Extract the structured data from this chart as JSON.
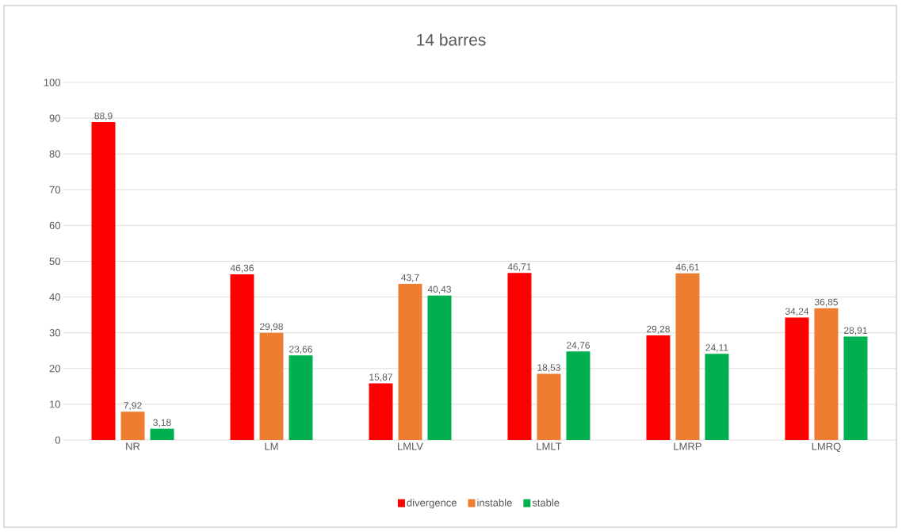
{
  "chart_data": {
    "type": "bar",
    "title": "14 barres",
    "categories": [
      "NR",
      "LM",
      "LMLV",
      "LMLT",
      "LMRP",
      "LMRQ"
    ],
    "series": [
      {
        "name": "divergence",
        "color": "#ff0000",
        "values": [
          88.9,
          46.36,
          15.87,
          46.71,
          29.28,
          34.24
        ],
        "value_labels": [
          "88,9",
          "46,36",
          "15,87",
          "46,71",
          "29,28",
          "34,24"
        ]
      },
      {
        "name": "instable",
        "color": "#ed7d31",
        "values": [
          7.92,
          29.98,
          43.7,
          18.53,
          46.61,
          36.85
        ],
        "value_labels": [
          "7,92",
          "29,98",
          "43,7",
          "18,53",
          "46,61",
          "36,85"
        ]
      },
      {
        "name": "stable",
        "color": "#00b050",
        "values": [
          3.18,
          23.66,
          40.43,
          24.76,
          24.11,
          28.91
        ],
        "value_labels": [
          "3,18",
          "23,66",
          "40,43",
          "24,76",
          "24,11",
          "28,91"
        ]
      }
    ],
    "ylim": [
      0,
      100
    ],
    "yticks": [
      0,
      10,
      20,
      30,
      40,
      50,
      60,
      70,
      80,
      90,
      100
    ],
    "grid": "y",
    "legend": "bottom"
  }
}
